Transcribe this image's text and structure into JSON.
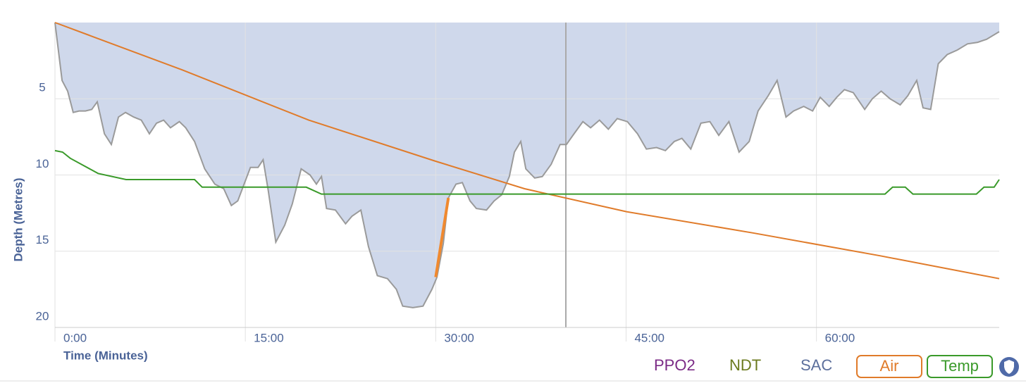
{
  "chart_data": {
    "type": "line",
    "x_label": "Time (Minutes)",
    "y_label": "Depth (Metres)",
    "xlim": [
      0,
      74.4
    ],
    "ylim": [
      0,
      20
    ],
    "y_inverted": true,
    "grid": true,
    "xticks": [
      {
        "value": 0,
        "label": "0:00"
      },
      {
        "value": 15,
        "label": "15:00"
      },
      {
        "value": 30,
        "label": "30:00"
      },
      {
        "value": 45,
        "label": "45:00"
      },
      {
        "value": 60,
        "label": "60:00"
      }
    ],
    "yticks": [
      5,
      10,
      15,
      20
    ],
    "depth": {
      "color": "#cfd8eb",
      "stroke": "#9a9a9a",
      "x": [
        0,
        0.56,
        1.0,
        1.44,
        1.9,
        2.4,
        2.9,
        3.33,
        3.9,
        4.44,
        5.0,
        5.56,
        6.2,
        6.8,
        7.44,
        8.0,
        8.56,
        9.1,
        9.8,
        10.3,
        11.0,
        11.8,
        12.6,
        13.3,
        13.9,
        14.4,
        14.9,
        15.4,
        16.0,
        16.4,
        16.8,
        17.4,
        18.1,
        18.7,
        19.4,
        20.1,
        20.6,
        21.0,
        21.4,
        22.1,
        22.9,
        23.4,
        24.1,
        24.7,
        25.4,
        26.2,
        26.9,
        27.4,
        28.2,
        29.0,
        29.7,
        30.1,
        30.6,
        31.0,
        31.6,
        32.1,
        32.7,
        33.2,
        34.0,
        34.6,
        35.2,
        35.8,
        36.2,
        36.7,
        37.1,
        37.8,
        38.4,
        39.1,
        39.8,
        40.3,
        40.9,
        41.6,
        42.2,
        42.9,
        43.6,
        44.3,
        45.1,
        45.9,
        46.6,
        47.4,
        48.1,
        48.8,
        49.4,
        50.1,
        50.9,
        51.6,
        52.3,
        53.1,
        53.9,
        54.7,
        55.4,
        56.2,
        56.9,
        57.6,
        58.2,
        59.0,
        59.7,
        60.3,
        61.0,
        61.6,
        62.2,
        62.9,
        63.8,
        64.4,
        65.1,
        65.8,
        66.6,
        67.2,
        67.9,
        68.4,
        69.0,
        69.6,
        70.3,
        71.1,
        71.9,
        72.7,
        73.4,
        74.4
      ],
      "values": [
        0,
        3.8,
        4.5,
        5.9,
        5.8,
        5.8,
        5.7,
        5.2,
        7.3,
        8.0,
        6.2,
        5.9,
        6.2,
        6.4,
        7.3,
        6.6,
        6.4,
        6.9,
        6.5,
        6.9,
        7.8,
        9.6,
        10.6,
        10.9,
        12.0,
        11.7,
        10.6,
        9.5,
        9.5,
        9.0,
        11.0,
        14.4,
        13.3,
        11.9,
        9.6,
        10.0,
        10.6,
        10.1,
        12.2,
        12.3,
        13.2,
        12.7,
        12.3,
        14.7,
        16.6,
        16.8,
        17.5,
        18.6,
        18.7,
        18.6,
        17.5,
        16.7,
        14.5,
        11.5,
        10.6,
        10.5,
        11.7,
        12.2,
        12.3,
        11.7,
        11.3,
        10.1,
        8.5,
        7.8,
        9.6,
        10.2,
        10.1,
        9.3,
        8.0,
        8.0,
        7.3,
        6.5,
        6.9,
        6.4,
        7.0,
        6.3,
        6.5,
        7.3,
        8.3,
        8.2,
        8.4,
        7.8,
        7.6,
        8.3,
        6.6,
        6.5,
        7.4,
        6.5,
        8.5,
        7.8,
        5.8,
        4.8,
        3.8,
        6.2,
        5.8,
        5.5,
        5.8,
        4.9,
        5.5,
        4.9,
        4.4,
        4.6,
        5.7,
        5.0,
        4.5,
        5.0,
        5.4,
        4.8,
        3.8,
        5.6,
        5.7,
        2.7,
        2.1,
        1.8,
        1.4,
        1.3,
        1.1,
        0.6
      ]
    },
    "series": [
      {
        "name": "Air",
        "color": "#e07b2a",
        "x": [
          0,
          10,
          20,
          30,
          37,
          45,
          55,
          65,
          74.4
        ],
        "values": [
          0,
          3.1,
          6.4,
          9.1,
          10.9,
          12.4,
          13.8,
          15.3,
          16.8
        ]
      },
      {
        "name": "Temp",
        "color": "#3a9a2a",
        "x": [
          0,
          0.6,
          1.2,
          2.3,
          3.4,
          5.6,
          11.0,
          11.6,
          19.8,
          21.0,
          65.4,
          66.0,
          67.0,
          67.6,
          72.6,
          73.2,
          74.0,
          74.4
        ],
        "values": [
          8.4,
          8.5,
          8.9,
          9.4,
          9.9,
          10.3,
          10.3,
          10.8,
          10.8,
          11.25,
          11.25,
          10.8,
          10.8,
          11.25,
          11.25,
          10.8,
          10.8,
          10.3
        ]
      }
    ],
    "warning_segment": {
      "color": "#f0892f",
      "x": [
        30.0,
        31.0
      ],
      "values": [
        16.7,
        11.5
      ]
    },
    "inactive_legend": [
      {
        "name": "PPO2",
        "color": "#7b2a86"
      },
      {
        "name": "NDT",
        "color": "#6b7a1e"
      },
      {
        "name": "SAC",
        "color": "#5c6f9c"
      }
    ]
  }
}
